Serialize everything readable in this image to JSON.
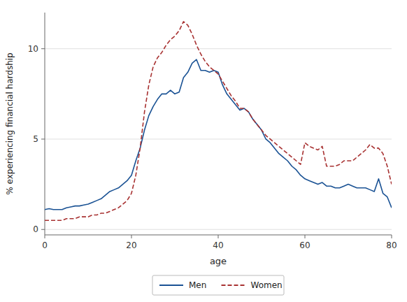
{
  "chart_data": {
    "type": "line",
    "xlabel": "age",
    "ylabel": "% experiencing financial hardship",
    "x": [
      0,
      1,
      2,
      3,
      4,
      5,
      6,
      7,
      8,
      9,
      10,
      11,
      12,
      13,
      14,
      15,
      16,
      17,
      18,
      19,
      20,
      21,
      22,
      23,
      24,
      25,
      26,
      27,
      28,
      29,
      30,
      31,
      32,
      33,
      34,
      35,
      36,
      37,
      38,
      39,
      40,
      41,
      42,
      43,
      44,
      45,
      46,
      47,
      48,
      49,
      50,
      51,
      52,
      53,
      54,
      55,
      56,
      57,
      58,
      59,
      60,
      61,
      62,
      63,
      64,
      65,
      66,
      67,
      68,
      69,
      70,
      71,
      72,
      73,
      74,
      75,
      76,
      77,
      78,
      79,
      80
    ],
    "series": [
      {
        "name": "Men",
        "color": "#1a5294",
        "line_style": "solid",
        "values": [
          1.1,
          1.15,
          1.1,
          1.1,
          1.1,
          1.2,
          1.25,
          1.3,
          1.3,
          1.35,
          1.4,
          1.5,
          1.6,
          1.7,
          1.9,
          2.1,
          2.2,
          2.3,
          2.5,
          2.7,
          3.0,
          3.8,
          4.5,
          5.5,
          6.3,
          6.8,
          7.2,
          7.5,
          7.5,
          7.7,
          7.5,
          7.6,
          8.4,
          8.7,
          9.2,
          9.4,
          8.8,
          8.8,
          8.7,
          8.8,
          8.7,
          8.0,
          7.5,
          7.2,
          6.9,
          6.6,
          6.7,
          6.5,
          6.1,
          5.8,
          5.5,
          5.0,
          4.8,
          4.5,
          4.2,
          4.0,
          3.8,
          3.5,
          3.3,
          3.0,
          2.8,
          2.7,
          2.6,
          2.5,
          2.6,
          2.4,
          2.4,
          2.3,
          2.3,
          2.4,
          2.5,
          2.4,
          2.3,
          2.3,
          2.3,
          2.2,
          2.1,
          2.8,
          2.0,
          1.8,
          1.2
        ]
      },
      {
        "name": "Women",
        "color": "#a83232",
        "line_style": "dashed",
        "values": [
          0.5,
          0.5,
          0.5,
          0.5,
          0.5,
          0.6,
          0.6,
          0.6,
          0.7,
          0.7,
          0.7,
          0.8,
          0.8,
          0.9,
          0.9,
          1.0,
          1.1,
          1.2,
          1.4,
          1.6,
          2.0,
          3.0,
          4.5,
          6.5,
          8.0,
          9.0,
          9.5,
          9.8,
          10.2,
          10.5,
          10.7,
          11.0,
          11.5,
          11.3,
          10.8,
          10.2,
          9.7,
          9.3,
          9.0,
          8.8,
          8.6,
          8.2,
          7.8,
          7.4,
          7.1,
          6.7,
          6.7,
          6.5,
          6.1,
          5.8,
          5.5,
          5.2,
          5.0,
          4.8,
          4.6,
          4.4,
          4.2,
          4.0,
          3.8,
          3.6,
          4.8,
          4.6,
          4.5,
          4.4,
          4.6,
          3.5,
          3.5,
          3.5,
          3.6,
          3.8,
          3.8,
          3.8,
          4.0,
          4.2,
          4.4,
          4.7,
          4.5,
          4.5,
          4.2,
          3.5,
          2.5
        ]
      }
    ],
    "xlim": [
      0,
      80
    ],
    "ylim": [
      -0.3,
      12
    ],
    "xticks": [
      0,
      20,
      40,
      60,
      80
    ],
    "yticks": [
      0,
      5,
      10
    ],
    "grid": "y",
    "legend": "bottom"
  }
}
